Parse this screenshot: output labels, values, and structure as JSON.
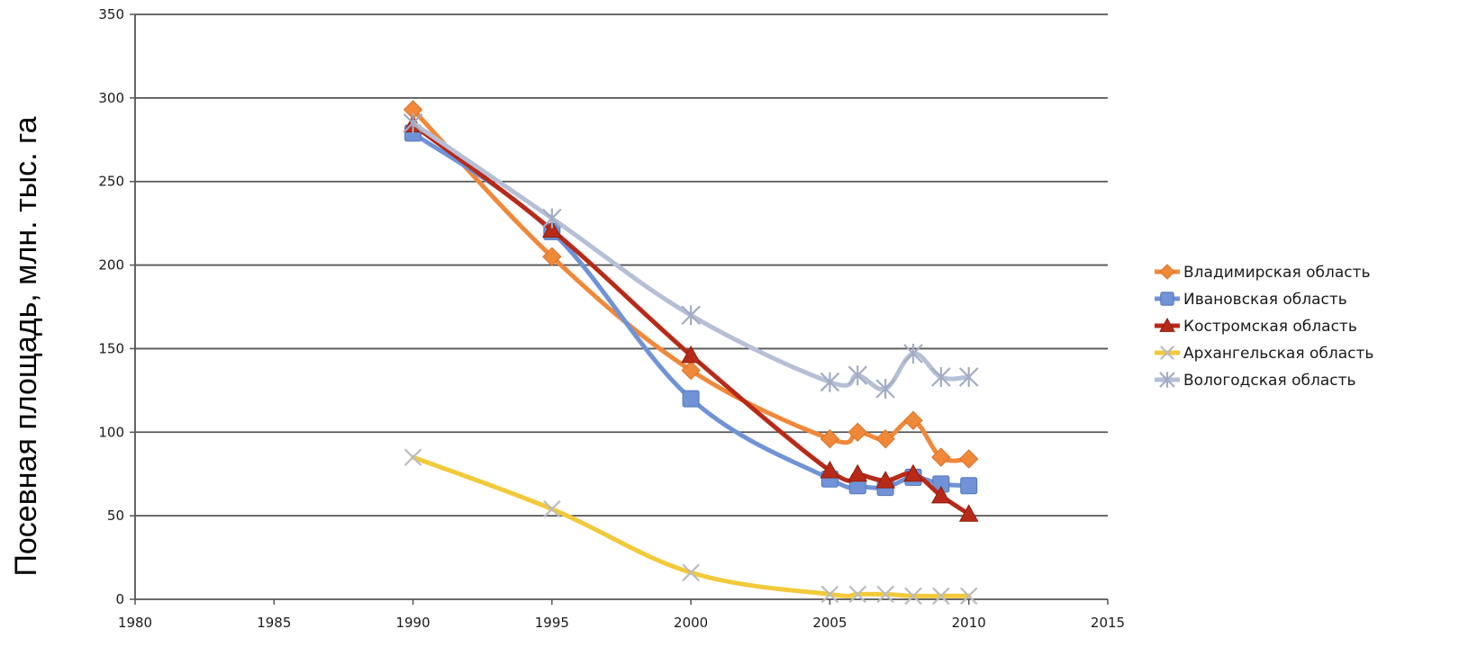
{
  "chart_data": {
    "type": "line",
    "title": "",
    "xlabel": "",
    "ylabel": "Посевная площадь, млн. тыс. га",
    "xlim": [
      1980,
      2015
    ],
    "ylim": [
      0,
      350
    ],
    "xticks": [
      1980,
      1985,
      1990,
      1995,
      2000,
      2005,
      2010,
      2015
    ],
    "yticks": [
      0,
      50,
      100,
      150,
      200,
      250,
      300,
      350
    ],
    "grid": "horizontal",
    "legend": "right",
    "series": [
      {
        "name": "Владимирская область",
        "color": "#f0883a",
        "marker": "diamond",
        "points": [
          [
            1990,
            293
          ],
          [
            1995,
            205
          ],
          [
            2000,
            137
          ],
          [
            2005,
            96
          ],
          [
            2006,
            100
          ],
          [
            2007,
            96
          ],
          [
            2008,
            107
          ],
          [
            2009,
            85
          ],
          [
            2010,
            84
          ]
        ]
      },
      {
        "name": "Ивановская область",
        "color": "#6f93d6",
        "marker": "square",
        "points": [
          [
            1990,
            279
          ],
          [
            1995,
            220
          ],
          [
            2000,
            120
          ],
          [
            2005,
            72
          ],
          [
            2006,
            68
          ],
          [
            2007,
            67
          ],
          [
            2008,
            73
          ],
          [
            2009,
            69
          ],
          [
            2010,
            68
          ]
        ]
      },
      {
        "name": "Костромская область",
        "color": "#b82a18",
        "marker": "triangle",
        "points": [
          [
            1990,
            284
          ],
          [
            1995,
            221
          ],
          [
            2000,
            146
          ],
          [
            2005,
            77
          ],
          [
            2006,
            75
          ],
          [
            2007,
            71
          ],
          [
            2008,
            75
          ],
          [
            2009,
            62
          ],
          [
            2010,
            51
          ]
        ]
      },
      {
        "name": "Архангельская область",
        "color": "#f2c93a",
        "marker": "x",
        "points": [
          [
            1990,
            85
          ],
          [
            1995,
            54
          ],
          [
            2000,
            16
          ],
          [
            2005,
            3
          ],
          [
            2006,
            3
          ],
          [
            2007,
            3
          ],
          [
            2008,
            2
          ],
          [
            2009,
            2
          ],
          [
            2010,
            2
          ]
        ]
      },
      {
        "name": "Вологодская область",
        "color": "#b5bfd6",
        "marker": "asterisk",
        "points": [
          [
            1990,
            285
          ],
          [
            1995,
            228
          ],
          [
            2000,
            170
          ],
          [
            2005,
            130
          ],
          [
            2006,
            134
          ],
          [
            2007,
            126
          ],
          [
            2008,
            147
          ],
          [
            2009,
            133
          ],
          [
            2010,
            133
          ]
        ]
      }
    ]
  }
}
